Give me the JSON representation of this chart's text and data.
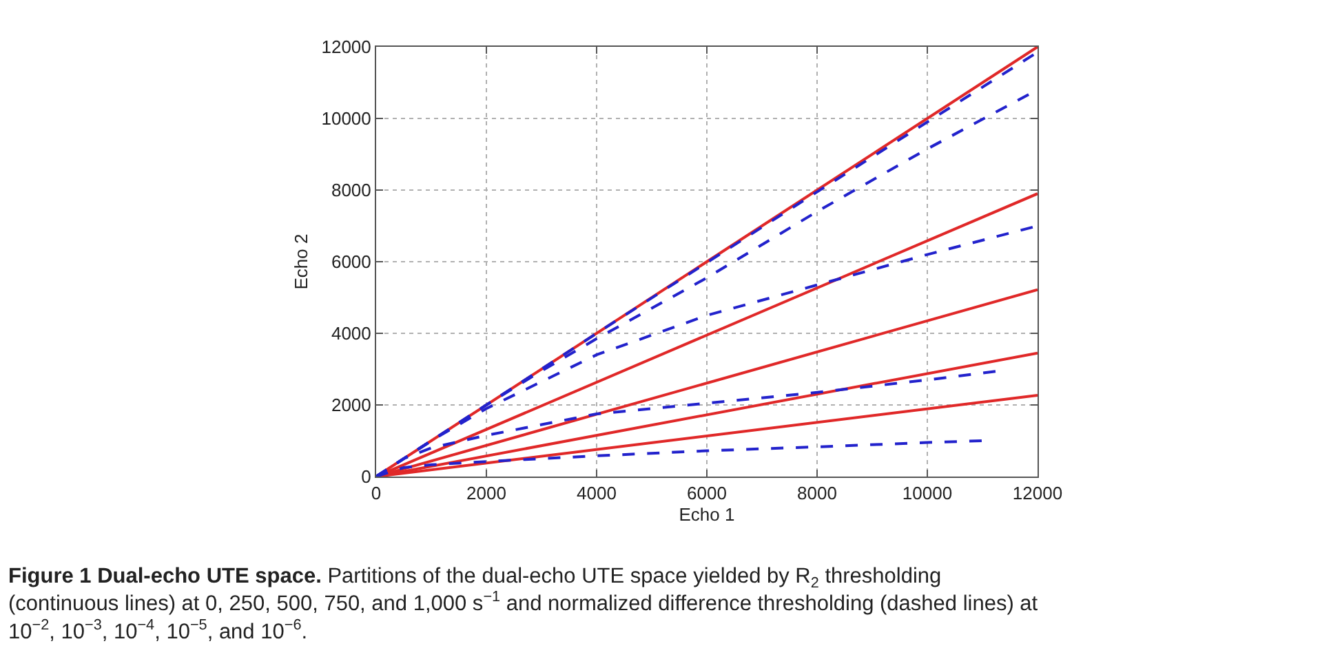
{
  "chart_data": {
    "type": "line",
    "xlabel": "Echo 1",
    "ylabel": "Echo 2",
    "xlim": [
      0,
      12000
    ],
    "xticks": [
      0,
      2000,
      4000,
      6000,
      8000,
      10000,
      12000
    ],
    "ylim": [
      0,
      12000
    ],
    "yticks": [
      0,
      2000,
      4000,
      6000,
      8000,
      10000,
      12000
    ],
    "grid": true,
    "series": [
      {
        "color": "#e02828",
        "line_style": "solid",
        "x": [
          0,
          12000
        ],
        "values": [
          0,
          12000
        ]
      },
      {
        "color": "#e02828",
        "line_style": "solid",
        "x": [
          0,
          12000
        ],
        "values": [
          0,
          7900
        ]
      },
      {
        "color": "#e02828",
        "line_style": "solid",
        "x": [
          0,
          12000
        ],
        "values": [
          0,
          5220
        ]
      },
      {
        "color": "#e02828",
        "line_style": "solid",
        "x": [
          0,
          12000
        ],
        "values": [
          0,
          3450
        ]
      },
      {
        "color": "#e02828",
        "line_style": "solid",
        "x": [
          0,
          12000
        ],
        "values": [
          0,
          2270
        ]
      },
      {
        "color": "#2222cc",
        "line_style": "dashed",
        "x": [
          0,
          4000,
          8000,
          12000
        ],
        "values": [
          0,
          4000,
          7950,
          11850
        ]
      },
      {
        "color": "#2222cc",
        "line_style": "dashed",
        "x": [
          0,
          2000,
          3000,
          4000,
          6000,
          8000,
          10000,
          12000
        ],
        "values": [
          0,
          2000,
          2950,
          3850,
          5550,
          7400,
          9150,
          10800
        ]
      },
      {
        "color": "#2222cc",
        "line_style": "dashed",
        "x": [
          0,
          1000,
          2000,
          4000,
          6000,
          8000,
          10000,
          12000
        ],
        "values": [
          0,
          1000,
          1900,
          3400,
          4500,
          5350,
          6200,
          7000
        ]
      },
      {
        "color": "#2222cc",
        "line_style": "dashed",
        "x": [
          0,
          500,
          1000,
          2000,
          4000,
          6000,
          8000,
          10000,
          11300
        ],
        "values": [
          0,
          500,
          800,
          1150,
          1750,
          2050,
          2350,
          2700,
          2950
        ]
      },
      {
        "color": "#2222cc",
        "line_style": "dashed",
        "x": [
          0,
          500,
          1000,
          2000,
          4000,
          6000,
          8000,
          10000,
          11000
        ],
        "values": [
          0,
          250,
          330,
          420,
          580,
          720,
          830,
          950,
          1000
        ]
      }
    ],
    "annotations": [
      "Figure 1 Dual-echo UTE space.",
      "Partitions of the dual-echo UTE space yielded by R$_{2}$ thresholding",
      "(continuous lines) at 0, 250, 500, 750, and 1,000 s$^{−1}$ and normalized difference thresholding (dashed lines) at",
      "10$^{−2}$, 10$^{−3}$, 10$^{−4}$, 10$^{−5}$, and 10$^{−6}$."
    ]
  }
}
